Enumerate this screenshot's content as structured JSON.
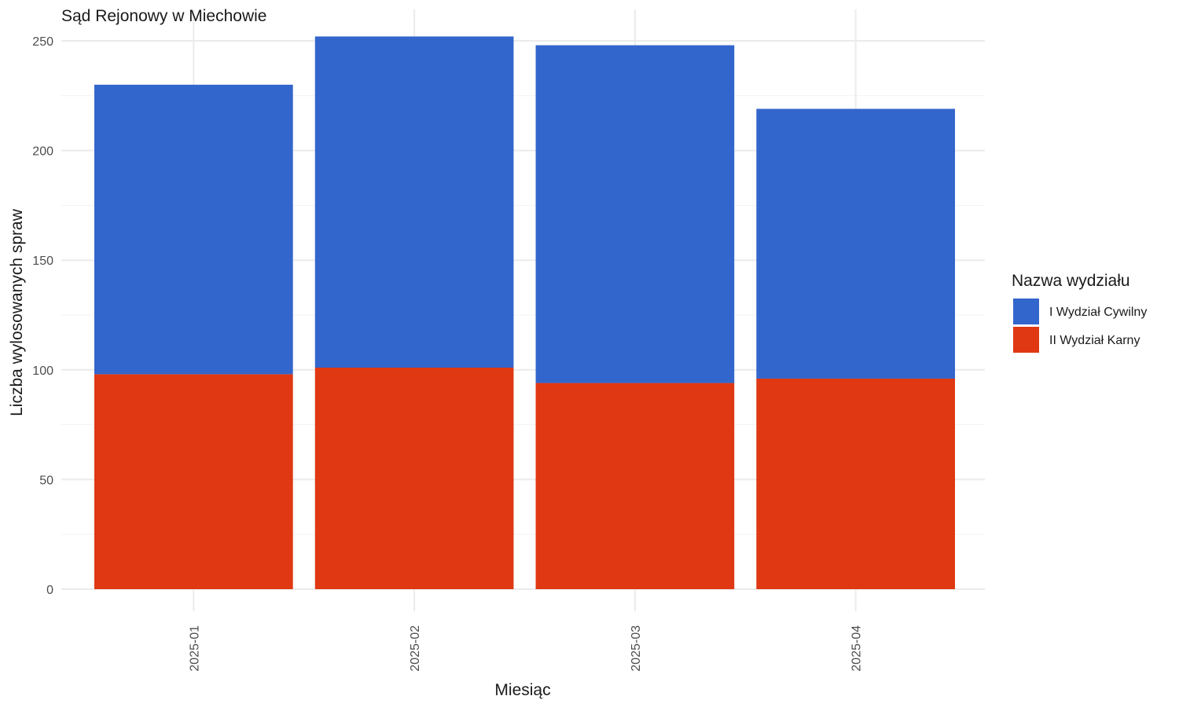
{
  "chart_data": {
    "type": "bar",
    "stacked": true,
    "title": "Sąd Rejonowy w Miechowie",
    "xlabel": "Miesiąc",
    "ylabel": "Liczba wylosowanych spraw",
    "categories": [
      "2025-01",
      "2025-02",
      "2025-03",
      "2025-04"
    ],
    "series": [
      {
        "name": "II Wydział Karny",
        "color": "#DF3812",
        "values": [
          98,
          101,
          94,
          96
        ]
      },
      {
        "name": "I Wydział Cywilny",
        "color": "#3366CC",
        "values": [
          132,
          151,
          154,
          123
        ]
      }
    ],
    "totals": [
      230,
      252,
      248,
      219
    ],
    "ylim": [
      0,
      255
    ],
    "yticks": [
      0,
      50,
      100,
      150,
      200,
      250
    ],
    "grid": true,
    "legend": {
      "title": "Nazwa wydziału",
      "position": "right",
      "items": [
        {
          "label": "I Wydział Cywilny",
          "color": "#3366CC"
        },
        {
          "label": "II Wydział Karny",
          "color": "#DF3812"
        }
      ]
    }
  }
}
